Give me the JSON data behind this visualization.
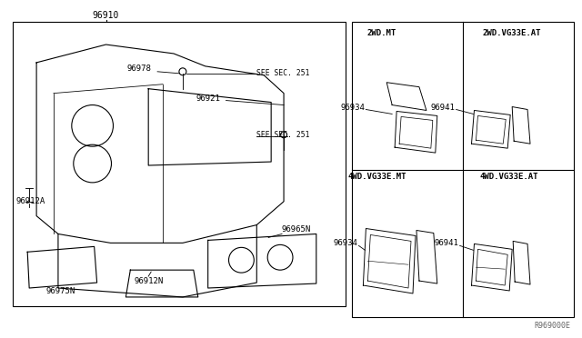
{
  "background_color": "#ffffff",
  "fig_width": 6.4,
  "fig_height": 3.72,
  "watermark": "R969000E",
  "main_part": "96910",
  "section_labels": [
    [
      "2WD.MT",
      420,
      35
    ],
    [
      "2WD.VG33E.AT",
      565,
      35
    ],
    [
      "4WD.VG33E.MT",
      415,
      195
    ],
    [
      "4WD.VG33E.AT",
      562,
      195
    ]
  ]
}
